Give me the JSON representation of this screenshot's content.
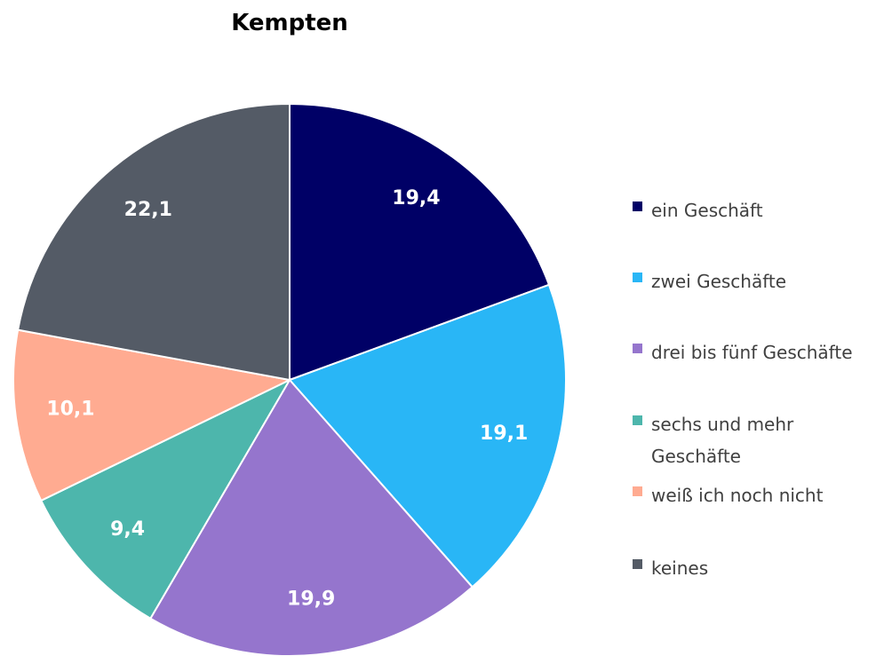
{
  "chart_data": {
    "type": "pie",
    "title": "Kempten",
    "categories": [
      "ein Geschäft",
      "zwei Geschäfte",
      "drei bis fünf Geschäfte",
      "sechs und mehr Geschäfte",
      "weiß ich noch nicht",
      "keines"
    ],
    "values": [
      19.4,
      19.1,
      19.9,
      9.4,
      10.1,
      22.1
    ],
    "value_labels": [
      "19,4",
      "19,1",
      "19,9",
      "9,4",
      "10,1",
      "22,1"
    ],
    "colors": [
      "#000066",
      "#29b6f6",
      "#9575cd",
      "#4db6ac",
      "#ffab91",
      "#545b66"
    ],
    "legend": "right"
  }
}
